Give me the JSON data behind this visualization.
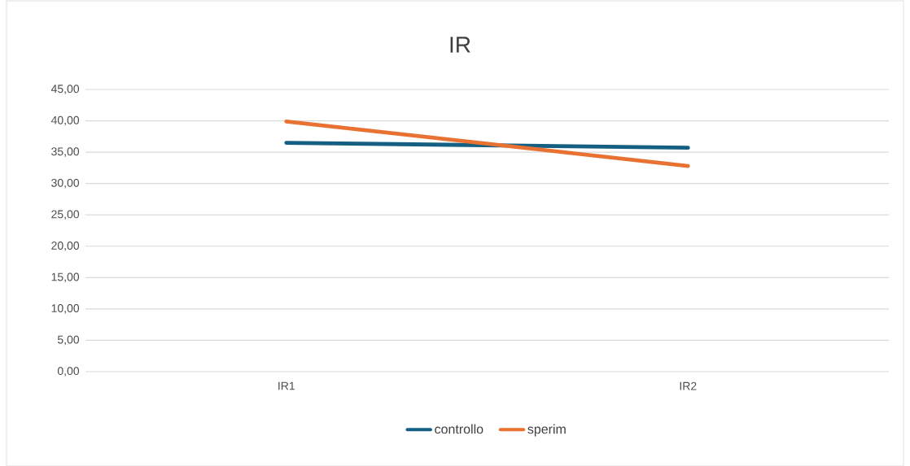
{
  "chart_data": {
    "type": "line",
    "title": "IR",
    "categories": [
      "IR1",
      "IR2"
    ],
    "series": [
      {
        "name": "controllo",
        "color": "#156082",
        "values": [
          36.5,
          35.7
        ]
      },
      {
        "name": "sperim",
        "color": "#e97132",
        "values": [
          39.9,
          32.8
        ]
      }
    ],
    "ylim": [
      0,
      45
    ],
    "yticks": [
      {
        "value": 0,
        "label": "0,00"
      },
      {
        "value": 5,
        "label": "5,00"
      },
      {
        "value": 10,
        "label": "10,00"
      },
      {
        "value": 15,
        "label": "15,00"
      },
      {
        "value": 20,
        "label": "20,00"
      },
      {
        "value": 25,
        "label": "25,00"
      },
      {
        "value": 30,
        "label": "30,00"
      },
      {
        "value": 35,
        "label": "35,00"
      },
      {
        "value": 40,
        "label": "40,00"
      },
      {
        "value": 45,
        "label": "45,00"
      }
    ],
    "grid": "y",
    "legend": "bottom",
    "marker": "none",
    "line_style": "solid"
  }
}
